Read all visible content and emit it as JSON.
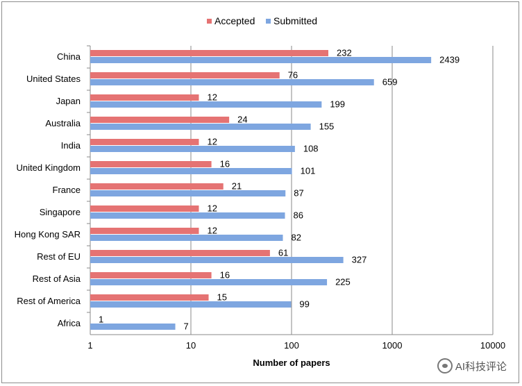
{
  "chart_data": {
    "type": "bar",
    "orientation": "horizontal",
    "categories": [
      "China",
      "United States",
      "Japan",
      "Australia",
      "India",
      "United Kingdom",
      "France",
      "Singapore",
      "Hong Kong SAR",
      "Rest of EU",
      "Rest of Asia",
      "Rest of America",
      "Africa"
    ],
    "series": [
      {
        "name": "Accepted",
        "color": "#e57373",
        "values": [
          232,
          76,
          12,
          24,
          12,
          16,
          21,
          12,
          12,
          61,
          16,
          15,
          1
        ]
      },
      {
        "name": "Submitted",
        "color": "#7ea6e0",
        "values": [
          2439,
          659,
          199,
          155,
          108,
          101,
          87,
          86,
          82,
          327,
          225,
          99,
          7
        ]
      }
    ],
    "xscale": "log",
    "xlim": [
      1,
      10000
    ],
    "xticks": [
      "1",
      "10",
      "100",
      "1000",
      "10000"
    ],
    "xlabel": "Number of papers",
    "ylabel": "",
    "title": "",
    "grid": true,
    "legend": "top-center"
  },
  "watermark": {
    "text": "AI科技评论",
    "icon": "wechat-icon"
  }
}
